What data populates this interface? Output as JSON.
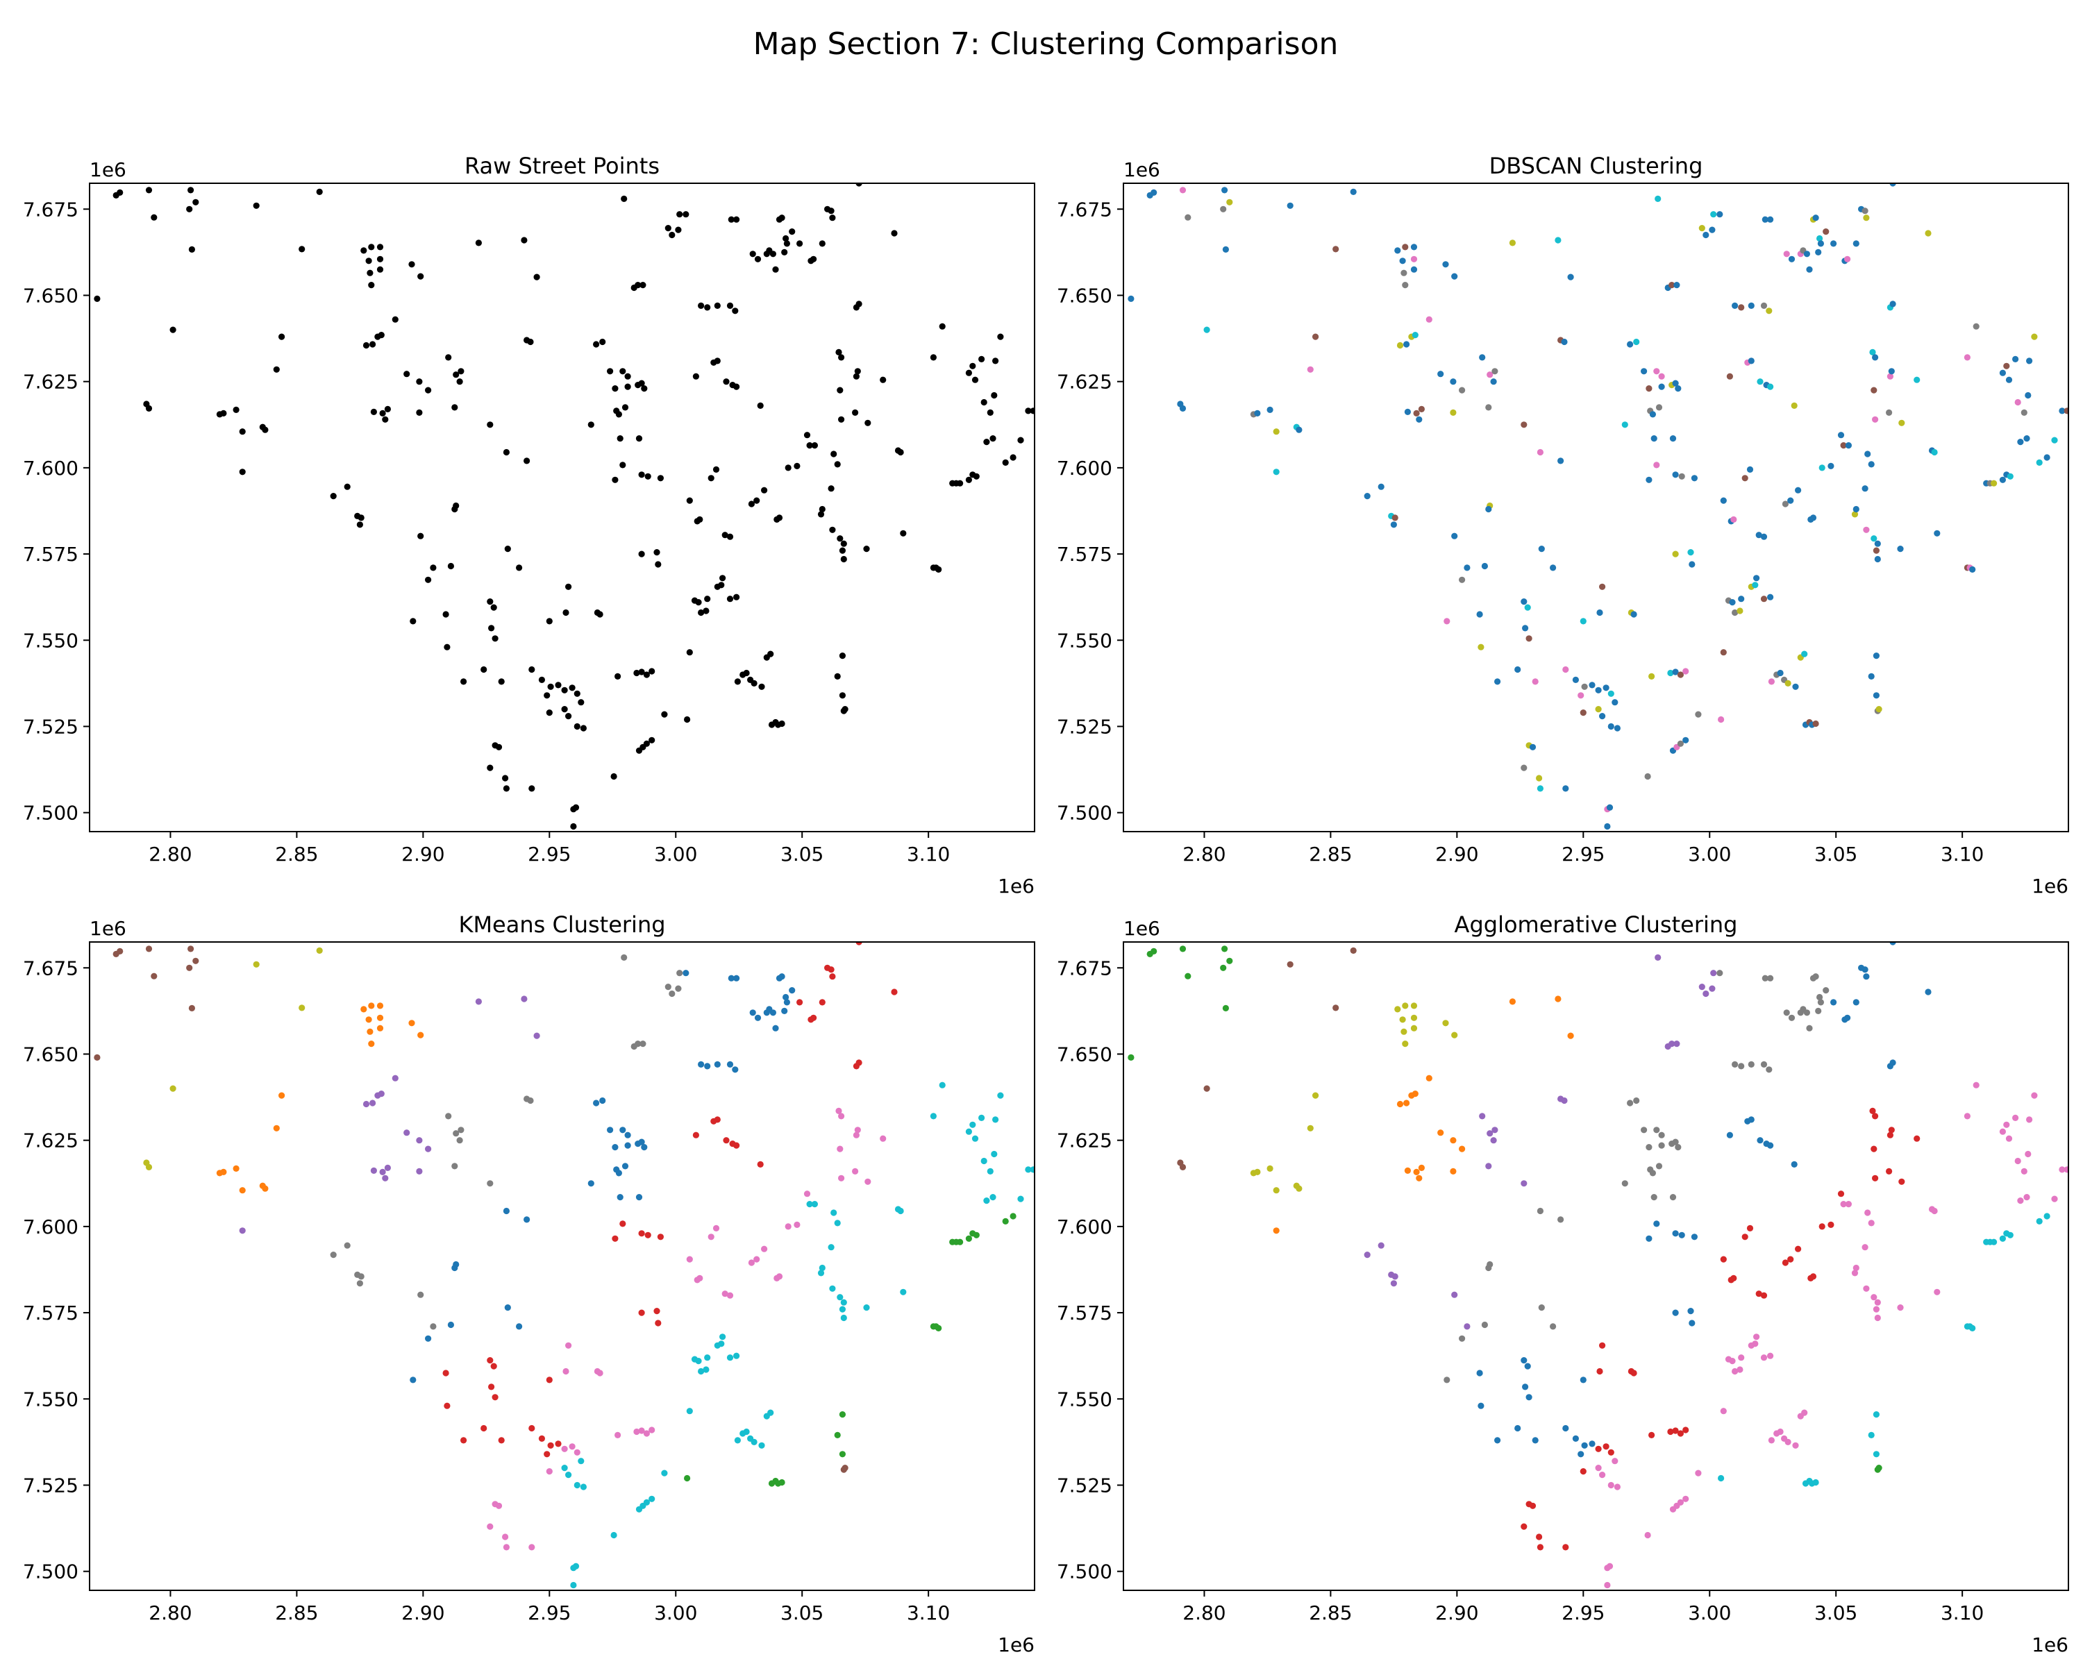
{
  "figure": {
    "suptitle": "Map Section 7: Clustering Comparison"
  },
  "palette": [
    "#1f77b4",
    "#ff7f0e",
    "#2ca02c",
    "#d62728",
    "#9467bd",
    "#8c564b",
    "#e377c2",
    "#7f7f7f",
    "#bcbd22",
    "#17becf"
  ],
  "chart_data": [
    {
      "type": "scatter",
      "title": "Raw Street Points",
      "xlabel": "",
      "ylabel": "",
      "x_offset_label": "1e6",
      "y_offset_label": "1e6",
      "xlim": [
        2.768,
        3.142
      ],
      "ylim": [
        7.4945,
        7.6825
      ],
      "xticks": [
        2.8,
        2.85,
        2.9,
        2.95,
        3.0,
        3.05,
        3.1
      ],
      "xtick_labels": [
        "2.80",
        "2.85",
        "2.90",
        "2.95",
        "3.00",
        "3.05",
        "3.10"
      ],
      "yticks": [
        7.5,
        7.525,
        7.55,
        7.575,
        7.6,
        7.625,
        7.65,
        7.675
      ],
      "ytick_labels": [
        "7.500",
        "7.525",
        "7.550",
        "7.575",
        "7.600",
        "7.625",
        "7.650",
        "7.675"
      ],
      "grid": false,
      "color_mode": "single",
      "point_color": "#000000"
    },
    {
      "type": "scatter",
      "title": "DBSCAN Clustering",
      "xlabel": "",
      "ylabel": "",
      "x_offset_label": "1e6",
      "y_offset_label": "1e6",
      "xlim": [
        2.768,
        3.142
      ],
      "ylim": [
        7.4945,
        7.6825
      ],
      "xticks": [
        2.8,
        2.85,
        2.9,
        2.95,
        3.0,
        3.05,
        3.1
      ],
      "xtick_labels": [
        "2.80",
        "2.85",
        "2.90",
        "2.95",
        "3.00",
        "3.05",
        "3.10"
      ],
      "yticks": [
        7.5,
        7.525,
        7.55,
        7.575,
        7.6,
        7.625,
        7.65,
        7.675
      ],
      "ytick_labels": [
        "7.500",
        "7.525",
        "7.550",
        "7.575",
        "7.600",
        "7.625",
        "7.650",
        "7.675"
      ],
      "grid": false,
      "color_mode": "mixed",
      "dominant_color": "#1f77b4"
    },
    {
      "type": "scatter",
      "title": "KMeans Clustering",
      "xlabel": "",
      "ylabel": "",
      "x_offset_label": "1e6",
      "y_offset_label": "1e6",
      "xlim": [
        2.768,
        3.142
      ],
      "ylim": [
        7.4945,
        7.6825
      ],
      "xticks": [
        2.8,
        2.85,
        2.9,
        2.95,
        3.0,
        3.05,
        3.1
      ],
      "xtick_labels": [
        "2.80",
        "2.85",
        "2.90",
        "2.95",
        "3.00",
        "3.05",
        "3.10"
      ],
      "yticks": [
        7.5,
        7.525,
        7.55,
        7.575,
        7.6,
        7.625,
        7.65,
        7.675
      ],
      "ytick_labels": [
        "7.500",
        "7.525",
        "7.550",
        "7.575",
        "7.600",
        "7.625",
        "7.650",
        "7.675"
      ],
      "grid": false,
      "color_mode": "regional"
    },
    {
      "type": "scatter",
      "title": "Agglomerative Clustering",
      "xlabel": "",
      "ylabel": "",
      "x_offset_label": "1e6",
      "y_offset_label": "1e6",
      "xlim": [
        2.768,
        3.142
      ],
      "ylim": [
        7.4945,
        7.6825
      ],
      "xticks": [
        2.8,
        2.85,
        2.9,
        2.95,
        3.0,
        3.05,
        3.1
      ],
      "xtick_labels": [
        "2.80",
        "2.85",
        "2.90",
        "2.95",
        "3.00",
        "3.05",
        "3.10"
      ],
      "yticks": [
        7.5,
        7.525,
        7.55,
        7.575,
        7.6,
        7.625,
        7.65,
        7.675
      ],
      "ytick_labels": [
        "7.500",
        "7.525",
        "7.550",
        "7.575",
        "7.600",
        "7.625",
        "7.650",
        "7.675"
      ],
      "grid": false,
      "color_mode": "regional"
    }
  ],
  "points": [
    [
      2.7785,
      7.679
    ],
    [
      2.78,
      7.6798
    ],
    [
      2.7915,
      7.6805
    ],
    [
      2.7935,
      7.6726
    ],
    [
      2.808,
      7.6805
    ],
    [
      2.8075,
      7.675
    ],
    [
      2.81,
      7.677
    ],
    [
      2.8085,
      7.6633
    ],
    [
      2.771,
      7.649
    ],
    [
      2.801,
      7.64
    ],
    [
      2.834,
      7.676
    ],
    [
      2.852,
      7.6634
    ],
    [
      2.859,
      7.68
    ],
    [
      2.844,
      7.638
    ],
    [
      2.842,
      7.6285
    ],
    [
      2.7905,
      7.6185
    ],
    [
      2.7915,
      7.6172
    ],
    [
      2.8195,
      7.6155
    ],
    [
      2.821,
      7.6158
    ],
    [
      2.826,
      7.6168
    ],
    [
      2.8285,
      7.6105
    ],
    [
      2.8365,
      7.6118
    ],
    [
      2.8375,
      7.611
    ],
    [
      2.8285,
      7.5988
    ],
    [
      2.8765,
      7.663
    ],
    [
      2.8795,
      7.664
    ],
    [
      2.883,
      7.664
    ],
    [
      2.8785,
      7.66
    ],
    [
      2.883,
      7.6605
    ],
    [
      2.879,
      7.6565
    ],
    [
      2.883,
      7.6575
    ],
    [
      2.8795,
      7.653
    ],
    [
      2.8775,
      7.6355
    ],
    [
      2.88,
      7.6358
    ],
    [
      2.882,
      7.638
    ],
    [
      2.8835,
      7.6385
    ],
    [
      2.8805,
      7.6162
    ],
    [
      2.884,
      7.6158
    ],
    [
      2.885,
      7.614
    ],
    [
      2.886,
      7.617
    ],
    [
      2.889,
      7.643
    ],
    [
      2.8935,
      7.6272
    ],
    [
      2.8985,
      7.625
    ],
    [
      2.902,
      7.6225
    ],
    [
      2.8955,
      7.659
    ],
    [
      2.899,
      7.6555
    ],
    [
      2.8985,
      7.616
    ],
    [
      2.8645,
      7.5918
    ],
    [
      2.87,
      7.5945
    ],
    [
      2.874,
      7.586
    ],
    [
      2.875,
      7.5835
    ],
    [
      2.8755,
      7.5855
    ],
    [
      2.899,
      7.5802
    ],
    [
      2.91,
      7.632
    ],
    [
      2.913,
      7.627
    ],
    [
      2.915,
      7.628
    ],
    [
      2.9145,
      7.625
    ],
    [
      2.9125,
      7.6175
    ],
    [
      2.913,
      7.589
    ],
    [
      2.9125,
      7.588
    ],
    [
      2.922,
      7.6652
    ],
    [
      2.94,
      7.666
    ],
    [
      2.945,
      7.6553
    ],
    [
      2.941,
      7.637
    ],
    [
      2.9425,
      7.6365
    ],
    [
      2.9265,
      7.6125
    ],
    [
      2.933,
      7.6045
    ],
    [
      2.941,
      7.602
    ],
    [
      2.896,
      7.5555
    ],
    [
      2.902,
      7.5675
    ],
    [
      2.904,
      7.571
    ],
    [
      2.909,
      7.5575
    ],
    [
      2.9095,
      7.548
    ],
    [
      2.911,
      7.5715
    ],
    [
      2.9265,
      7.5612
    ],
    [
      2.928,
      7.5595
    ],
    [
      2.927,
      7.5535
    ],
    [
      2.9285,
      7.5505
    ],
    [
      2.9335,
      7.5765
    ],
    [
      2.938,
      7.571
    ],
    [
      2.931,
      7.538
    ],
    [
      2.924,
      7.5415
    ],
    [
      2.916,
      7.538
    ],
    [
      2.9265,
      7.513
    ],
    [
      2.9285,
      7.5195
    ],
    [
      2.93,
      7.519
    ],
    [
      2.9325,
      7.51
    ],
    [
      2.933,
      7.507
    ],
    [
      2.943,
      7.507
    ],
    [
      2.95,
      7.5555
    ],
    [
      2.9565,
      7.558
    ],
    [
      2.9575,
      7.5655
    ],
    [
      2.943,
      7.5415
    ],
    [
      2.947,
      7.5385
    ],
    [
      2.949,
      7.534
    ],
    [
      2.9505,
      7.5365
    ],
    [
      2.9535,
      7.537
    ],
    [
      2.956,
      7.5355
    ],
    [
      2.956,
      7.53
    ],
    [
      2.9575,
      7.528
    ],
    [
      2.959,
      7.5362
    ],
    [
      2.961,
      7.5345
    ],
    [
      2.9625,
      7.532
    ],
    [
      2.95,
      7.529
    ],
    [
      2.961,
      7.525
    ],
    [
      2.9635,
      7.5245
    ],
    [
      2.9595,
      7.501
    ],
    [
      2.9605,
      7.5015
    ],
    [
      2.9595,
      7.496
    ],
    [
      2.9755,
      7.5105
    ],
    [
      2.969,
      7.558
    ],
    [
      2.97,
      7.5575
    ],
    [
      2.977,
      7.5395
    ],
    [
      2.9665,
      7.6125
    ],
    [
      2.9685,
      7.6358
    ],
    [
      2.971,
      7.6365
    ],
    [
      2.974,
      7.628
    ],
    [
      2.976,
      7.623
    ],
    [
      2.979,
      7.628
    ],
    [
      2.981,
      7.6235
    ],
    [
      2.981,
      7.6265
    ],
    [
      2.9765,
      7.6165
    ],
    [
      2.9775,
      7.6155
    ],
    [
      2.98,
      7.6175
    ],
    [
      2.985,
      7.624
    ],
    [
      2.9865,
      7.6245
    ],
    [
      2.9875,
      7.623
    ],
    [
      2.9795,
      7.678
    ],
    [
      2.9835,
      7.6522
    ],
    [
      2.985,
      7.653
    ],
    [
      2.987,
      7.653
    ],
    [
      2.978,
      7.6085
    ],
    [
      2.979,
      7.6008
    ],
    [
      2.9855,
      7.6085
    ],
    [
      2.9865,
      7.598
    ],
    [
      2.989,
      7.5975
    ],
    [
      2.994,
      7.597
    ],
    [
      2.976,
      7.5965
    ],
    [
      2.9865,
      7.575
    ],
    [
      2.9925,
      7.5755
    ],
    [
      2.993,
      7.572
    ],
    [
      2.9845,
      7.5405
    ],
    [
      2.9865,
      7.5408
    ],
    [
      2.9885,
      7.54
    ],
    [
      2.9905,
      7.541
    ],
    [
      2.9855,
      7.518
    ],
    [
      2.987,
      7.519
    ],
    [
      2.9885,
      7.52
    ],
    [
      2.9905,
      7.521
    ],
    [
      2.9955,
      7.5285
    ],
    [
      2.997,
      7.6695
    ],
    [
      2.9985,
      7.6675
    ],
    [
      3.001,
      7.669
    ],
    [
      3.0015,
      7.6735
    ],
    [
      3.004,
      7.6735
    ],
    [
      3.008,
      7.6265
    ],
    [
      3.01,
      7.647
    ],
    [
      3.0125,
      7.6465
    ],
    [
      3.015,
      7.6305
    ],
    [
      3.0165,
      7.631
    ],
    [
      3.0165,
      7.647
    ],
    [
      3.0215,
      7.647
    ],
    [
      3.022,
      7.672
    ],
    [
      3.024,
      7.672
    ],
    [
      3.0235,
      7.6455
    ],
    [
      3.02,
      7.625
    ],
    [
      3.0225,
      7.624
    ],
    [
      3.024,
      7.6235
    ],
    [
      3.016,
      7.5995
    ],
    [
      3.014,
      7.597
    ],
    [
      3.0055,
      7.5905
    ],
    [
      3.0085,
      7.5845
    ],
    [
      3.0095,
      7.585
    ],
    [
      3.0075,
      7.5615
    ],
    [
      3.009,
      7.561
    ],
    [
      3.01,
      7.558
    ],
    [
      3.012,
      7.5585
    ],
    [
      3.0125,
      7.562
    ],
    [
      3.0165,
      7.5655
    ],
    [
      3.018,
      7.566
    ],
    [
      3.0185,
      7.568
    ],
    [
      3.0215,
      7.562
    ],
    [
      3.024,
      7.5625
    ],
    [
      3.0055,
      7.5465
    ],
    [
      3.0045,
      7.527
    ],
    [
      3.0195,
      7.5805
    ],
    [
      3.0215,
      7.58
    ],
    [
      3.03,
      7.5895
    ],
    [
      3.032,
      7.5905
    ],
    [
      3.035,
      7.5935
    ],
    [
      3.0335,
      7.618
    ],
    [
      3.04,
      7.585
    ],
    [
      3.041,
      7.5855
    ],
    [
      3.0445,
      7.6
    ],
    [
      3.048,
      7.6005
    ],
    [
      3.053,
      7.6065
    ],
    [
      3.055,
      7.6065
    ],
    [
      3.052,
      7.6095
    ],
    [
      3.0245,
      7.538
    ],
    [
      3.0265,
      7.54
    ],
    [
      3.028,
      7.5405
    ],
    [
      3.0295,
      7.5385
    ],
    [
      3.031,
      7.5375
    ],
    [
      3.034,
      7.5365
    ],
    [
      3.036,
      7.545
    ],
    [
      3.0375,
      7.546
    ],
    [
      3.038,
      7.5255
    ],
    [
      3.0395,
      7.5262
    ],
    [
      3.0405,
      7.5255
    ],
    [
      3.042,
      7.5258
    ],
    [
      3.0305,
      7.662
    ],
    [
      3.0325,
      7.6605
    ],
    [
      3.036,
      7.662
    ],
    [
      3.037,
      7.663
    ],
    [
      3.0385,
      7.662
    ],
    [
      3.0395,
      7.6575
    ],
    [
      3.041,
      7.672
    ],
    [
      3.042,
      7.6725
    ],
    [
      3.043,
      7.6625
    ],
    [
      3.0435,
      7.6665
    ],
    [
      3.044,
      7.665
    ],
    [
      3.046,
      7.6685
    ],
    [
      3.049,
      7.665
    ],
    [
      3.0535,
      7.66
    ],
    [
      3.0545,
      7.6605
    ],
    [
      3.058,
      7.665
    ],
    [
      3.06,
      7.675
    ],
    [
      3.0615,
      7.6745
    ],
    [
      3.062,
      7.6725
    ],
    [
      3.0725,
      7.6825
    ],
    [
      3.0865,
      7.668
    ],
    [
      3.0715,
      7.6465
    ],
    [
      3.0725,
      7.6475
    ],
    [
      3.0645,
      7.6335
    ],
    [
      3.0655,
      7.632
    ],
    [
      3.065,
      7.6225
    ],
    [
      3.0715,
      7.6265
    ],
    [
      3.072,
      7.628
    ],
    [
      3.0655,
      7.614
    ],
    [
      3.071,
      7.616
    ],
    [
      3.0625,
      7.604
    ],
    [
      3.064,
      7.601
    ],
    [
      3.0575,
      7.5865
    ],
    [
      3.058,
      7.588
    ],
    [
      3.0615,
      7.594
    ],
    [
      3.065,
      7.5795
    ],
    [
      3.0665,
      7.578
    ],
    [
      3.066,
      7.576
    ],
    [
      3.0665,
      7.5735
    ],
    [
      3.0755,
      7.5765
    ],
    [
      3.062,
      7.582
    ],
    [
      3.064,
      7.5395
    ],
    [
      3.066,
      7.534
    ],
    [
      3.0665,
      7.5295
    ],
    [
      3.067,
      7.53
    ],
    [
      3.066,
      7.5455
    ],
    [
      3.076,
      7.613
    ],
    [
      3.082,
      7.6255
    ],
    [
      3.088,
      7.605
    ],
    [
      3.089,
      7.6045
    ],
    [
      3.09,
      7.581
    ],
    [
      3.102,
      7.571
    ],
    [
      3.103,
      7.571
    ],
    [
      3.104,
      7.5705
    ],
    [
      3.102,
      7.632
    ],
    [
      3.1055,
      7.641
    ],
    [
      3.1095,
      7.5955
    ],
    [
      3.111,
      7.5955
    ],
    [
      3.1125,
      7.5955
    ],
    [
      3.116,
      7.5965
    ],
    [
      3.1175,
      7.598
    ],
    [
      3.119,
      7.5975
    ],
    [
      3.116,
      7.6275
    ],
    [
      3.1175,
      7.6295
    ],
    [
      3.1185,
      7.6255
    ],
    [
      3.121,
      7.6315
    ],
    [
      3.122,
      7.619
    ],
    [
      3.123,
      7.6075
    ],
    [
      3.1255,
      7.6085
    ],
    [
      3.1245,
      7.616
    ],
    [
      3.126,
      7.621
    ],
    [
      3.1265,
      7.631
    ],
    [
      3.1285,
      7.638
    ],
    [
      3.1305,
      7.6015
    ],
    [
      3.1335,
      7.603
    ],
    [
      3.1365,
      7.608
    ],
    [
      3.1395,
      7.6165
    ],
    [
      3.1415,
      7.6165
    ]
  ]
}
